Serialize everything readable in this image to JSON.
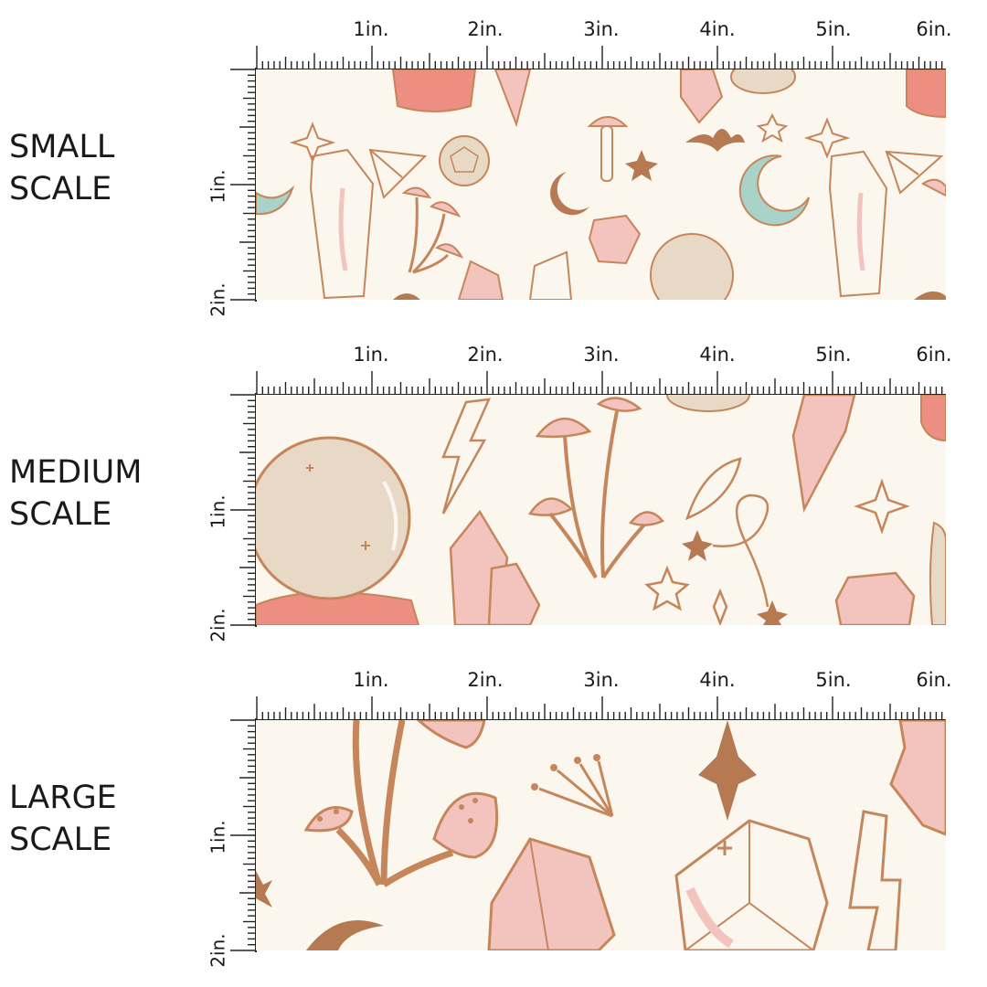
{
  "rows": [
    {
      "label_line1": "SMALL",
      "label_line2": "SCALE"
    },
    {
      "label_line1": "MEDIUM",
      "label_line2": "SCALE"
    },
    {
      "label_line1": "LARGE",
      "label_line2": "SCALE"
    }
  ],
  "ruler": {
    "top_labels": [
      "1in.",
      "2in.",
      "3in.",
      "4in.",
      "5in.",
      "6in."
    ],
    "side_labels": [
      "1in.",
      "2in."
    ]
  },
  "colors": {
    "background": "#fbf6ee",
    "outline": "#c4865a",
    "pink": "#f3c3bd",
    "coral": "#ec8e82",
    "beige": "#e8d9c6",
    "mint": "#a9d2c8",
    "brown": "#b57a52"
  }
}
